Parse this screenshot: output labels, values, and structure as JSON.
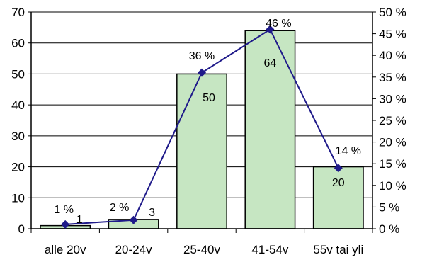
{
  "chart_data": {
    "type": "bar",
    "categories": [
      "alle 20v",
      "20-24v",
      "25-40v",
      "41-54v",
      "55v tai yli"
    ],
    "series": [
      {
        "type": "bar",
        "axis": "left",
        "values": [
          1,
          3,
          50,
          64,
          20
        ],
        "color": "#c6e6c2"
      },
      {
        "type": "line",
        "axis": "right",
        "values": [
          1,
          2,
          36,
          46,
          14
        ],
        "color": "#1f1a8a"
      }
    ],
    "bar_labels": [
      "1",
      "3",
      "50",
      "64",
      "20"
    ],
    "line_labels": [
      "1 %",
      "2 %",
      "36 %",
      "46 %",
      "14 %"
    ],
    "y_left": {
      "min": 0,
      "max": 70,
      "step": 10,
      "ticks": [
        "0",
        "10",
        "20",
        "30",
        "40",
        "50",
        "60",
        "70"
      ]
    },
    "y_right": {
      "min": 0,
      "max": 50,
      "step": 5,
      "unit": "%",
      "ticks": [
        "0 %",
        "5 %",
        "10 %",
        "15 %",
        "20 %",
        "25 %",
        "30 %",
        "35 %",
        "40 %",
        "45 %",
        "50 %"
      ]
    },
    "title": "",
    "xlabel": "",
    "ylabel": "",
    "grid": "horizontal",
    "legend": "none"
  }
}
